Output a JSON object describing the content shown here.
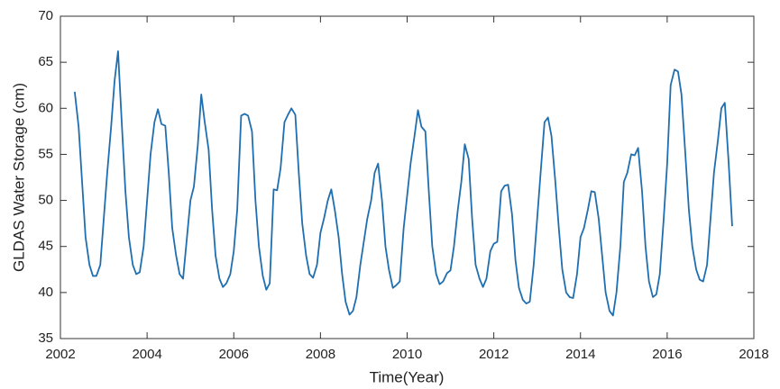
{
  "chart_data": {
    "type": "line",
    "x_label": "Time(Year)",
    "y_label": "GLDAS Water Storage (cm)",
    "color": "#1f6fb0",
    "x": [
      2002.33,
      2002.42,
      2002.5,
      2002.58,
      2002.67,
      2002.75,
      2002.83,
      2002.92,
      2003.0,
      2003.08,
      2003.17,
      2003.25,
      2003.33,
      2003.42,
      2003.5,
      2003.58,
      2003.67,
      2003.75,
      2003.83,
      2003.92,
      2004.0,
      2004.08,
      2004.17,
      2004.25,
      2004.33,
      2004.42,
      2004.5,
      2004.58,
      2004.67,
      2004.75,
      2004.83,
      2004.92,
      2005.0,
      2005.08,
      2005.17,
      2005.25,
      2005.33,
      2005.42,
      2005.5,
      2005.58,
      2005.67,
      2005.75,
      2005.83,
      2005.92,
      2006.0,
      2006.08,
      2006.17,
      2006.25,
      2006.33,
      2006.42,
      2006.5,
      2006.58,
      2006.67,
      2006.75,
      2006.83,
      2006.92,
      2007.0,
      2007.08,
      2007.17,
      2007.25,
      2007.33,
      2007.42,
      2007.5,
      2007.58,
      2007.67,
      2007.75,
      2007.83,
      2007.92,
      2008.0,
      2008.08,
      2008.17,
      2008.25,
      2008.33,
      2008.42,
      2008.5,
      2008.58,
      2008.67,
      2008.75,
      2008.83,
      2008.92,
      2009.0,
      2009.08,
      2009.17,
      2009.25,
      2009.33,
      2009.42,
      2009.5,
      2009.58,
      2009.67,
      2009.75,
      2009.83,
      2009.92,
      2010.0,
      2010.08,
      2010.17,
      2010.25,
      2010.33,
      2010.42,
      2010.5,
      2010.58,
      2010.67,
      2010.75,
      2010.83,
      2010.92,
      2011.0,
      2011.08,
      2011.17,
      2011.25,
      2011.33,
      2011.42,
      2011.5,
      2011.58,
      2011.67,
      2011.75,
      2011.83,
      2011.92,
      2012.0,
      2012.08,
      2012.17,
      2012.25,
      2012.33,
      2012.42,
      2012.5,
      2012.58,
      2012.67,
      2012.75,
      2012.83,
      2012.92,
      2013.0,
      2013.08,
      2013.17,
      2013.25,
      2013.33,
      2013.42,
      2013.5,
      2013.58,
      2013.67,
      2013.75,
      2013.83,
      2013.92,
      2014.0,
      2014.08,
      2014.17,
      2014.25,
      2014.33,
      2014.42,
      2014.5,
      2014.58,
      2014.67,
      2014.75,
      2014.83,
      2014.92,
      2015.0,
      2015.08,
      2015.17,
      2015.25,
      2015.33,
      2015.42,
      2015.5,
      2015.58,
      2015.67,
      2015.75,
      2015.83,
      2015.92,
      2016.0,
      2016.08,
      2016.17,
      2016.25,
      2016.33,
      2016.42,
      2016.5,
      2016.58,
      2016.67,
      2016.75,
      2016.83,
      2016.92,
      2017.0,
      2017.08,
      2017.17,
      2017.25,
      2017.33,
      2017.42,
      2017.5
    ],
    "values": [
      61.8,
      58,
      52,
      46,
      43,
      41.8,
      41.8,
      43,
      48,
      53,
      58,
      63,
      66.2,
      58,
      51,
      46,
      43,
      42,
      42.2,
      45,
      50,
      55,
      58.5,
      59.9,
      58.3,
      58.1,
      53,
      47,
      44,
      42,
      41.5,
      46,
      50,
      51.5,
      56,
      61.5,
      58.5,
      55.5,
      49,
      44,
      41.5,
      40.6,
      41,
      42,
      44.5,
      49,
      59.2,
      59.4,
      59.2,
      57.5,
      50,
      45,
      41.8,
      40.3,
      41,
      51.2,
      51.1,
      53.5,
      58.5,
      59.3,
      60,
      59.3,
      53,
      47.5,
      44,
      42,
      41.6,
      43,
      46.5,
      48,
      50,
      51.2,
      49,
      46,
      42,
      39,
      37.6,
      38,
      39.5,
      43,
      45.5,
      48,
      50,
      53,
      54,
      50,
      45,
      42.5,
      40.5,
      40.8,
      41.2,
      47,
      50.5,
      54,
      57,
      59.8,
      58,
      57.5,
      51,
      45,
      42,
      40.9,
      41.2,
      42.1,
      42.4,
      45,
      49,
      52,
      56.1,
      54.5,
      48,
      43,
      41.5,
      40.6,
      41.5,
      44.5,
      45.3,
      45.5,
      51,
      51.6,
      51.7,
      48.5,
      43.5,
      40.5,
      39.2,
      38.8,
      39,
      43,
      48,
      53,
      58.5,
      59,
      57,
      52,
      47,
      42.5,
      40,
      39.5,
      39.4,
      42,
      46,
      47,
      49,
      51,
      50.9,
      48,
      44,
      40,
      38,
      37.5,
      40,
      45,
      52,
      53,
      55,
      54.9,
      55.7,
      51,
      45,
      41.2,
      39.5,
      39.8,
      42,
      48,
      54,
      62.5,
      64.2,
      64,
      61.5,
      55,
      49,
      45,
      42.5,
      41.4,
      41.2,
      43,
      48,
      53,
      56.5,
      60,
      60.6,
      54,
      47.2
    ],
    "xlim": [
      2002,
      2018
    ],
    "xticks": [
      2002,
      2004,
      2006,
      2008,
      2010,
      2012,
      2014,
      2016,
      2018
    ],
    "ylim": [
      35,
      70
    ],
    "yticks": [
      35,
      40,
      45,
      50,
      55,
      60,
      65,
      70
    ],
    "grid": false
  }
}
